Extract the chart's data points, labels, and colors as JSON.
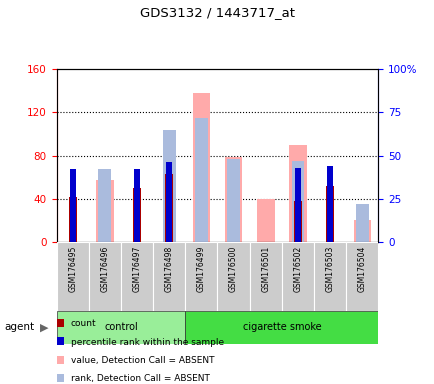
{
  "title": "GDS3132 / 1443717_at",
  "samples": [
    "GSM176495",
    "GSM176496",
    "GSM176497",
    "GSM176498",
    "GSM176499",
    "GSM176500",
    "GSM176501",
    "GSM176502",
    "GSM176503",
    "GSM176504"
  ],
  "count_values": [
    42,
    0,
    50,
    63,
    0,
    0,
    0,
    38,
    52,
    0
  ],
  "percentile_values": [
    42,
    0,
    42,
    46,
    0,
    0,
    0,
    43,
    44,
    0
  ],
  "value_absent": [
    0,
    57,
    0,
    0,
    138,
    79,
    40,
    90,
    0,
    20
  ],
  "rank_absent": [
    0,
    42,
    0,
    65,
    72,
    48,
    0,
    47,
    0,
    22
  ],
  "left_ylim": [
    0,
    160
  ],
  "right_ylim": [
    0,
    100
  ],
  "left_yticks": [
    0,
    40,
    80,
    120,
    160
  ],
  "right_yticks": [
    0,
    25,
    50,
    75,
    100
  ],
  "right_yticklabels": [
    "0",
    "25",
    "50",
    "75",
    "100%"
  ],
  "color_count": "#AA0000",
  "color_percentile": "#0000CC",
  "color_value_absent": "#FFAAAA",
  "color_rank_absent": "#AABBDD",
  "control_color": "#99EE99",
  "smoke_color": "#44DD44",
  "legend_items": [
    {
      "color": "#AA0000",
      "label": "count"
    },
    {
      "color": "#0000CC",
      "label": "percentile rank within the sample"
    },
    {
      "color": "#FFAAAA",
      "label": "value, Detection Call = ABSENT"
    },
    {
      "color": "#AABBDD",
      "label": "rank, Detection Call = ABSENT"
    }
  ]
}
